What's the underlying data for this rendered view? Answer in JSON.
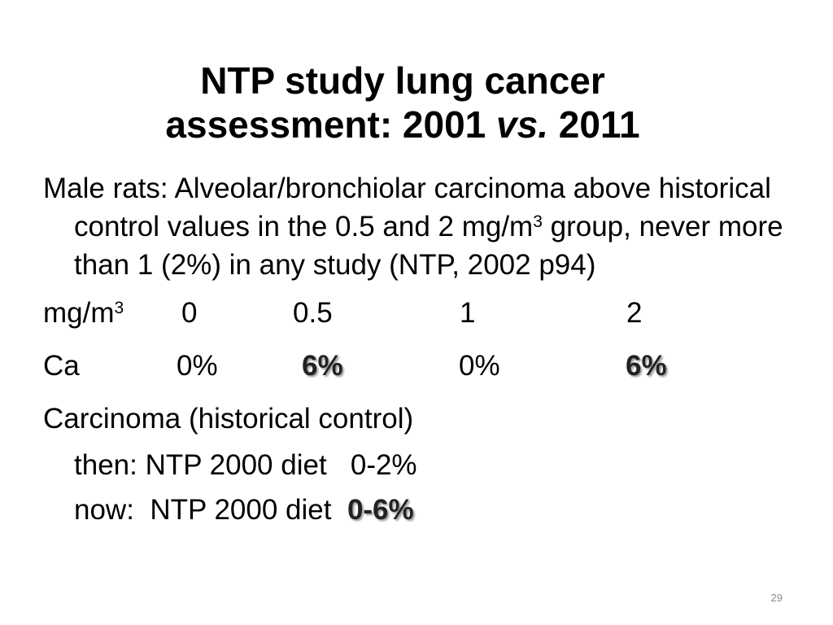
{
  "slide": {
    "title_line1": "NTP study lung cancer",
    "title_line2_prefix": "assessment: 2001 ",
    "title_line2_em": "vs.",
    "title_line2_suffix": " 2011",
    "intro": {
      "text_before_sup": "Male rats: Alveolar/bronchiolar carcinoma above historical control values in the 0.5 and 2 mg/m",
      "sup": "3",
      "text_after_sup": " group, never more than 1 (2%) in any study  (NTP, 2002 p94)"
    },
    "dose_row": {
      "label": "mg/m",
      "label_sup": "3",
      "values": [
        "0",
        "0.5",
        "1",
        "2"
      ]
    },
    "ca_row": {
      "label": "Ca",
      "values": [
        "0%",
        "6%",
        "0%",
        "6%"
      ],
      "highlighted": [
        false,
        true,
        false,
        true
      ]
    },
    "historical": {
      "heading": "Carcinoma (historical control)",
      "then_text": "then: NTP 2000 diet   0-2%",
      "now_text": "now:  NTP 2000 diet  ",
      "now_value": "0-6%"
    },
    "page_number": "29"
  }
}
